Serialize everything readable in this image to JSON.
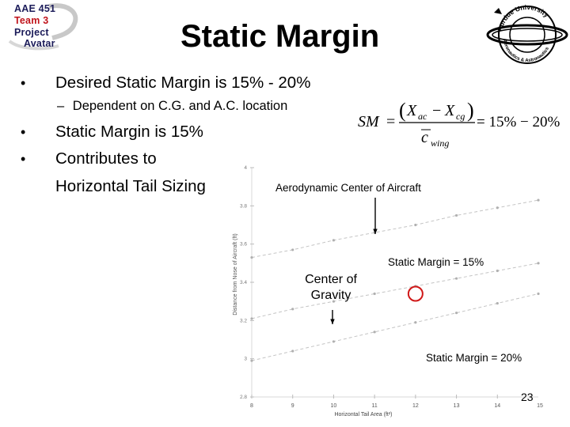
{
  "logo": {
    "lines": [
      "AAE 451",
      "Team 3",
      "Project",
      "Avatar"
    ]
  },
  "title": "Static Margin",
  "university_logo": {
    "top_text": "Purdue University",
    "bottom_text": "Aeronautics & Astronautics"
  },
  "bullets": [
    {
      "text": "Desired Static Margin is 15% - 20%"
    },
    {
      "text": "Static Margin is 15%"
    },
    {
      "text": "Contributes to"
    },
    {
      "text": "Horizontal Tail Sizing"
    }
  ],
  "sub_bullet": {
    "dash": "–",
    "text": "Dependent on C.G. and A.C. location"
  },
  "formula": {
    "lhs": "SM",
    "equals": "=",
    "paren_open": "(",
    "paren_close": ")",
    "x": "X",
    "ac": "ac",
    "minus": "−",
    "cg": "cg",
    "denominator_c": "c",
    "wing": "wing",
    "rhs": "= 15% − 20%"
  },
  "chart": {
    "annotations": {
      "ac": "Aerodynamic Center of Aircraft",
      "sm15": "Static Margin = 15%",
      "cog_line1": "Center of",
      "cog_line2": "Gravity",
      "sm20": "Static Margin = 20%"
    },
    "y_label": "Distance from Nose of Aircraft (ft)",
    "x_label": "Horizontal Tail Area (ft²)",
    "x_ticks": [
      "8",
      "9",
      "10",
      "11",
      "12",
      "13",
      "14"
    ],
    "x_end_tick": "15",
    "y_ticks": [
      "4",
      "3.8",
      "3.6",
      "3.4",
      "3.2",
      "3",
      "2.8"
    ]
  },
  "chart_data": {
    "type": "line",
    "title": "",
    "xlabel": "Horizontal Tail Area (ft²)",
    "ylabel": "Distance from Nose of Aircraft (ft)",
    "xlim": [
      8,
      15
    ],
    "ylim": [
      2.8,
      4
    ],
    "x": [
      8,
      9,
      10,
      11,
      12,
      13,
      14,
      15
    ],
    "series": [
      {
        "name": "Aerodynamic Center of Aircraft",
        "values": [
          3.53,
          3.57,
          3.62,
          3.66,
          3.7,
          3.75,
          3.79,
          3.83
        ]
      },
      {
        "name": "Static Margin = 15%",
        "values": [
          3.21,
          3.26,
          3.3,
          3.34,
          3.38,
          3.42,
          3.46,
          3.5
        ]
      },
      {
        "name": "Static Margin = 20%",
        "values": [
          2.99,
          3.04,
          3.09,
          3.14,
          3.19,
          3.24,
          3.29,
          3.34
        ]
      }
    ],
    "highlight": {
      "x": 12,
      "y": 3.34
    }
  },
  "page_number": "23",
  "colors": {
    "logo_navy": "#1c1c5a",
    "logo_red": "#c0141c",
    "highlight": "#d01818"
  }
}
